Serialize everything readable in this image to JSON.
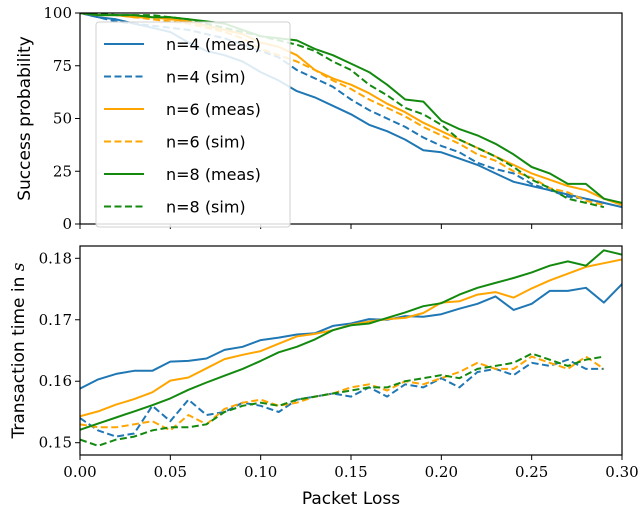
{
  "colors": {
    "n4": "#1f77b4",
    "n6": "#ffa500",
    "n8": "#138a0f",
    "axis": "#000000"
  },
  "chart_data": [
    {
      "type": "line",
      "ylabel": "Success probability",
      "xlabel": "",
      "xlim": [
        0,
        0.3
      ],
      "ylim": [
        0,
        100
      ],
      "x_ticks": [
        0,
        0.05,
        0.1,
        0.15,
        0.2,
        0.25,
        0.3
      ],
      "y_ticks": [
        0,
        25,
        50,
        75,
        100
      ],
      "y_tick_labels": [
        "0",
        "25",
        "50",
        "75",
        "100"
      ],
      "x_tick_labels_visible": false,
      "legend_position": "upper-left",
      "legend": [
        {
          "name": "n=4 (meas)",
          "color": "#1f77b4",
          "style": "solid"
        },
        {
          "name": "n=4 (sim)",
          "color": "#1f77b4",
          "style": "dashed"
        },
        {
          "name": "n=6 (meas)",
          "color": "#ffa500",
          "style": "solid"
        },
        {
          "name": "n=6 (sim)",
          "color": "#ffa500",
          "style": "dashed"
        },
        {
          "name": "n=8 (meas)",
          "color": "#138a0f",
          "style": "solid"
        },
        {
          "name": "n=8 (sim)",
          "color": "#138a0f",
          "style": "dashed"
        }
      ],
      "series": [
        {
          "name": "n=4 (meas)",
          "color": "#1f77b4",
          "style": "solid",
          "x": [
            0,
            0.01,
            0.02,
            0.03,
            0.04,
            0.05,
            0.06,
            0.07,
            0.08,
            0.09,
            0.1,
            0.11,
            0.12,
            0.13,
            0.14,
            0.15,
            0.16,
            0.17,
            0.18,
            0.19,
            0.2,
            0.21,
            0.22,
            0.23,
            0.24,
            0.25,
            0.26,
            0.27,
            0.28,
            0.29,
            0.3
          ],
          "y": [
            100,
            98,
            97,
            95,
            93,
            91,
            86,
            82,
            80,
            77,
            72,
            68,
            63,
            60,
            56,
            52,
            47,
            44,
            40,
            35,
            34,
            31,
            28,
            24,
            20,
            18,
            16,
            14,
            12,
            10,
            8
          ]
        },
        {
          "name": "n=4 (sim)",
          "color": "#1f77b4",
          "style": "dashed",
          "x": [
            0,
            0.01,
            0.02,
            0.03,
            0.04,
            0.05,
            0.06,
            0.07,
            0.08,
            0.09,
            0.1,
            0.11,
            0.12,
            0.13,
            0.14,
            0.15,
            0.16,
            0.17,
            0.18,
            0.19,
            0.2,
            0.21,
            0.22,
            0.23,
            0.24,
            0.25,
            0.26,
            0.27,
            0.28,
            0.29
          ],
          "y": [
            100,
            98,
            96,
            95,
            94,
            93,
            92,
            90,
            88,
            85,
            82,
            79,
            73,
            69,
            65,
            59,
            54,
            50,
            46,
            41,
            37,
            34,
            29,
            26,
            24,
            19,
            16,
            13,
            12,
            10
          ]
        },
        {
          "name": "n=6 (meas)",
          "color": "#ffa500",
          "style": "solid",
          "x": [
            0,
            0.01,
            0.02,
            0.03,
            0.04,
            0.05,
            0.06,
            0.07,
            0.08,
            0.09,
            0.1,
            0.11,
            0.12,
            0.13,
            0.14,
            0.15,
            0.16,
            0.17,
            0.18,
            0.19,
            0.2,
            0.21,
            0.22,
            0.23,
            0.24,
            0.25,
            0.26,
            0.27,
            0.28,
            0.29,
            0.3
          ],
          "y": [
            100,
            99,
            99,
            98,
            98,
            97,
            96,
            94,
            92,
            90,
            86,
            84,
            80,
            73,
            69,
            66,
            62,
            57,
            53,
            48,
            44,
            40,
            36,
            32,
            28,
            24,
            21,
            18,
            16,
            12,
            9
          ]
        },
        {
          "name": "n=6 (sim)",
          "color": "#ffa500",
          "style": "dashed",
          "x": [
            0,
            0.01,
            0.02,
            0.03,
            0.04,
            0.05,
            0.06,
            0.07,
            0.08,
            0.09,
            0.1,
            0.11,
            0.12,
            0.13,
            0.14,
            0.15,
            0.16,
            0.17,
            0.18,
            0.19,
            0.2,
            0.21,
            0.22,
            0.23,
            0.24,
            0.25,
            0.26,
            0.27,
            0.28,
            0.29
          ],
          "y": [
            100,
            99,
            99,
            98,
            97,
            96,
            95,
            93,
            91,
            88,
            83,
            80,
            77,
            73,
            68,
            64,
            59,
            55,
            51,
            46,
            42,
            38,
            33,
            30,
            25,
            22,
            17,
            15,
            11,
            9
          ]
        },
        {
          "name": "n=8 (meas)",
          "color": "#138a0f",
          "style": "solid",
          "x": [
            0,
            0.01,
            0.02,
            0.03,
            0.04,
            0.05,
            0.06,
            0.07,
            0.08,
            0.09,
            0.1,
            0.11,
            0.12,
            0.13,
            0.14,
            0.15,
            0.16,
            0.17,
            0.18,
            0.19,
            0.2,
            0.21,
            0.22,
            0.23,
            0.24,
            0.25,
            0.26,
            0.27,
            0.28,
            0.29,
            0.3
          ],
          "y": [
            100,
            99,
            99,
            99,
            98,
            98,
            97,
            96,
            95,
            92,
            89,
            88,
            87,
            83,
            80,
            76,
            72,
            66,
            59,
            58,
            49,
            45,
            42,
            38,
            33,
            27,
            24,
            19,
            19,
            12,
            10
          ]
        },
        {
          "name": "n=8 (sim)",
          "color": "#138a0f",
          "style": "dashed",
          "x": [
            0,
            0.01,
            0.02,
            0.03,
            0.04,
            0.05,
            0.06,
            0.07,
            0.08,
            0.09,
            0.1,
            0.11,
            0.12,
            0.13,
            0.14,
            0.15,
            0.16,
            0.17,
            0.18,
            0.19,
            0.2,
            0.21,
            0.22,
            0.23,
            0.24,
            0.25,
            0.26,
            0.27,
            0.28,
            0.29
          ],
          "y": [
            100,
            100,
            99,
            99,
            99,
            98,
            97,
            95,
            93,
            91,
            89,
            87,
            85,
            82,
            77,
            73,
            66,
            61,
            55,
            52,
            47,
            40,
            36,
            32,
            27,
            21,
            17,
            12,
            10,
            8
          ]
        }
      ]
    },
    {
      "type": "line",
      "xlabel": "Packet Loss",
      "ylabel": "Transaction time in s",
      "ylabel_text": "Transaction time in ",
      "ylabel_symbol": "s",
      "xlim": [
        0,
        0.3
      ],
      "ylim": [
        0.148,
        0.182
      ],
      "x_ticks": [
        0,
        0.05,
        0.1,
        0.15,
        0.2,
        0.25,
        0.3
      ],
      "x_tick_labels": [
        "0.00",
        "0.05",
        "0.10",
        "0.15",
        "0.20",
        "0.25",
        "0.30"
      ],
      "y_ticks": [
        0.15,
        0.16,
        0.17,
        0.18
      ],
      "y_tick_labels": [
        "0.15",
        "0.16",
        "0.17",
        "0.18"
      ],
      "series": [
        {
          "name": "n=4 (meas)",
          "color": "#1f77b4",
          "style": "solid",
          "x": [
            0,
            0.01,
            0.02,
            0.03,
            0.04,
            0.05,
            0.06,
            0.07,
            0.08,
            0.09,
            0.1,
            0.11,
            0.12,
            0.13,
            0.14,
            0.15,
            0.16,
            0.17,
            0.18,
            0.19,
            0.2,
            0.21,
            0.22,
            0.23,
            0.24,
            0.25,
            0.26,
            0.27,
            0.28,
            0.29,
            0.3
          ],
          "y": [
            0.1588,
            0.1603,
            0.1612,
            0.1617,
            0.1617,
            0.1632,
            0.1633,
            0.1637,
            0.1651,
            0.1656,
            0.1667,
            0.1671,
            0.1676,
            0.1678,
            0.169,
            0.1694,
            0.1701,
            0.17,
            0.1706,
            0.1705,
            0.1709,
            0.1718,
            0.1726,
            0.1738,
            0.1716,
            0.1726,
            0.1747,
            0.1747,
            0.1752,
            0.1728,
            0.1758
          ]
        },
        {
          "name": "n=4 (sim)",
          "color": "#1f77b4",
          "style": "dashed",
          "x": [
            0,
            0.01,
            0.02,
            0.03,
            0.04,
            0.05,
            0.06,
            0.07,
            0.08,
            0.09,
            0.1,
            0.11,
            0.12,
            0.13,
            0.14,
            0.15,
            0.16,
            0.17,
            0.18,
            0.19,
            0.2,
            0.21,
            0.22,
            0.23,
            0.24,
            0.25,
            0.26,
            0.27,
            0.28,
            0.29
          ],
          "y": [
            0.154,
            0.152,
            0.151,
            0.1515,
            0.156,
            0.1535,
            0.157,
            0.1545,
            0.155,
            0.1565,
            0.156,
            0.155,
            0.157,
            0.1575,
            0.158,
            0.1575,
            0.159,
            0.1575,
            0.1595,
            0.159,
            0.1605,
            0.159,
            0.1615,
            0.162,
            0.161,
            0.163,
            0.1625,
            0.1635,
            0.162,
            0.162
          ]
        },
        {
          "name": "n=6 (meas)",
          "color": "#ffa500",
          "style": "solid",
          "x": [
            0,
            0.01,
            0.02,
            0.03,
            0.04,
            0.05,
            0.06,
            0.07,
            0.08,
            0.09,
            0.1,
            0.11,
            0.12,
            0.13,
            0.14,
            0.15,
            0.16,
            0.17,
            0.18,
            0.19,
            0.2,
            0.21,
            0.22,
            0.23,
            0.24,
            0.25,
            0.26,
            0.27,
            0.28,
            0.29,
            0.3
          ],
          "y": [
            0.1543,
            0.1551,
            0.1562,
            0.1571,
            0.1582,
            0.1601,
            0.1606,
            0.1621,
            0.1636,
            0.1643,
            0.1649,
            0.1661,
            0.1673,
            0.1677,
            0.1683,
            0.1692,
            0.1697,
            0.1701,
            0.1703,
            0.1711,
            0.1728,
            0.173,
            0.1741,
            0.1745,
            0.1736,
            0.1751,
            0.1764,
            0.1775,
            0.1786,
            0.1792,
            0.1798
          ]
        },
        {
          "name": "n=6 (sim)",
          "color": "#ffa500",
          "style": "dashed",
          "x": [
            0,
            0.01,
            0.02,
            0.03,
            0.04,
            0.05,
            0.06,
            0.07,
            0.08,
            0.09,
            0.1,
            0.11,
            0.12,
            0.13,
            0.14,
            0.15,
            0.16,
            0.17,
            0.18,
            0.19,
            0.2,
            0.21,
            0.22,
            0.23,
            0.24,
            0.25,
            0.26,
            0.27,
            0.28,
            0.29
          ],
          "y": [
            0.153,
            0.1525,
            0.1525,
            0.153,
            0.1535,
            0.152,
            0.1545,
            0.153,
            0.1555,
            0.1565,
            0.157,
            0.156,
            0.1565,
            0.1575,
            0.158,
            0.159,
            0.1595,
            0.1585,
            0.16,
            0.1595,
            0.1605,
            0.1615,
            0.163,
            0.162,
            0.162,
            0.164,
            0.163,
            0.162,
            0.164,
            0.162
          ]
        },
        {
          "name": "n=8 (meas)",
          "color": "#138a0f",
          "style": "solid",
          "x": [
            0,
            0.01,
            0.02,
            0.03,
            0.04,
            0.05,
            0.06,
            0.07,
            0.08,
            0.09,
            0.1,
            0.11,
            0.12,
            0.13,
            0.14,
            0.15,
            0.16,
            0.17,
            0.18,
            0.19,
            0.2,
            0.21,
            0.22,
            0.23,
            0.24,
            0.25,
            0.26,
            0.27,
            0.28,
            0.29,
            0.3
          ],
          "y": [
            0.1521,
            0.1531,
            0.1541,
            0.1551,
            0.1561,
            0.1572,
            0.1586,
            0.1598,
            0.1609,
            0.162,
            0.1633,
            0.1647,
            0.1656,
            0.1668,
            0.1683,
            0.1691,
            0.1694,
            0.1703,
            0.1712,
            0.1722,
            0.1727,
            0.1741,
            0.1752,
            0.176,
            0.1768,
            0.1777,
            0.1788,
            0.1795,
            0.1788,
            0.1813,
            0.1806
          ]
        },
        {
          "name": "n=8 (sim)",
          "color": "#138a0f",
          "style": "dashed",
          "x": [
            0,
            0.01,
            0.02,
            0.03,
            0.04,
            0.05,
            0.06,
            0.07,
            0.08,
            0.09,
            0.1,
            0.11,
            0.12,
            0.13,
            0.14,
            0.15,
            0.16,
            0.17,
            0.18,
            0.19,
            0.2,
            0.21,
            0.22,
            0.23,
            0.24,
            0.25,
            0.26,
            0.27,
            0.28,
            0.29
          ],
          "y": [
            0.1505,
            0.1495,
            0.1505,
            0.151,
            0.152,
            0.1525,
            0.1525,
            0.153,
            0.155,
            0.156,
            0.1565,
            0.156,
            0.157,
            0.1575,
            0.158,
            0.1585,
            0.159,
            0.159,
            0.16,
            0.1605,
            0.161,
            0.1605,
            0.162,
            0.1625,
            0.163,
            0.1645,
            0.1635,
            0.1625,
            0.1635,
            0.164
          ]
        }
      ]
    }
  ]
}
